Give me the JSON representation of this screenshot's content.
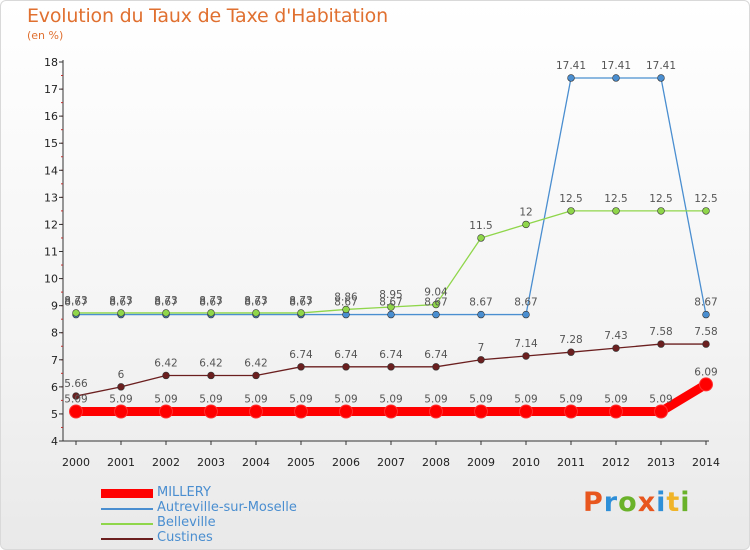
{
  "header": {
    "title": "Evolution du Taux de Taxe d'Habitation",
    "unit": "(en %)"
  },
  "logo": {
    "text": "Proxiti",
    "letter_colors": [
      "#e8561e",
      "#2e8fd8",
      "#6ab22a",
      "#e8561e",
      "#2e8fd8",
      "#f0b428",
      "#6ab22a"
    ]
  },
  "chart_data": {
    "type": "line",
    "title": "Evolution du Taux de Taxe d'Habitation",
    "ylabel": "(en %)",
    "xlabel": "",
    "ylim": [
      4,
      18
    ],
    "yticks": [
      "4",
      "5",
      "6",
      "7",
      "8",
      "9",
      "10",
      "11",
      "12",
      "13",
      "14",
      "15",
      "16",
      "17",
      "18"
    ],
    "x": [
      "2000",
      "2001",
      "2002",
      "2003",
      "2004",
      "2005",
      "2006",
      "2007",
      "2008",
      "2009",
      "2010",
      "2011",
      "2012",
      "2013",
      "2014"
    ],
    "legend_position": "bottom-left",
    "grid": false,
    "series": [
      {
        "name": "Custines",
        "color": "#6b1f1f",
        "values": [
          5.66,
          6,
          6.42,
          6.42,
          6.42,
          6.74,
          6.74,
          6.74,
          6.74,
          7,
          7.14,
          7.28,
          7.43,
          7.58,
          7.58
        ],
        "labels": [
          "5.66",
          "6",
          "6.42",
          "6.42",
          "6.42",
          "6.74",
          "6.74",
          "6.74",
          "6.74",
          "7",
          "7.14",
          "7.28",
          "7.43",
          "7.58",
          "7.58"
        ]
      },
      {
        "name": "Autreville-sur-Moselle",
        "color": "#4a8ed0",
        "values": [
          8.67,
          8.67,
          8.67,
          8.67,
          8.67,
          8.67,
          8.67,
          8.67,
          8.67,
          8.67,
          8.67,
          17.41,
          17.41,
          17.41,
          8.67
        ],
        "labels": [
          "8.67",
          "8.67",
          "8.67",
          "8.67",
          "8.67",
          "8.67",
          "8.67",
          "8.67",
          "8.67",
          "8.67",
          "8.67",
          "17.41",
          "17.41",
          "17.41",
          "8.67"
        ]
      },
      {
        "name": "Belleville",
        "color": "#8fd64a",
        "values": [
          8.73,
          8.73,
          8.73,
          8.73,
          8.73,
          8.73,
          8.86,
          8.95,
          9.04,
          11.5,
          12,
          12.5,
          12.5,
          12.5,
          12.5
        ],
        "labels": [
          "8.73",
          "8.73",
          "8.73",
          "8.73",
          "8.73",
          "8.73",
          "8.86",
          "8.95",
          "9.04",
          "11.5",
          "12",
          "12.5",
          "12.5",
          "12.5",
          "12.5"
        ]
      },
      {
        "name": "MILLERY",
        "color": "#ff0000",
        "values": [
          5.09,
          5.09,
          5.09,
          5.09,
          5.09,
          5.09,
          5.09,
          5.09,
          5.09,
          5.09,
          5.09,
          5.09,
          5.09,
          5.09,
          6.09
        ],
        "labels": [
          "5.09",
          "5.09",
          "5.09",
          "5.09",
          "5.09",
          "5.09",
          "5.09",
          "5.09",
          "5.09",
          "5.09",
          "5.09",
          "5.09",
          "5.09",
          "5.09",
          "6.09"
        ]
      }
    ],
    "legend_order": [
      "MILLERY",
      "Autreville-sur-Moselle",
      "Belleville",
      "Custines"
    ]
  }
}
